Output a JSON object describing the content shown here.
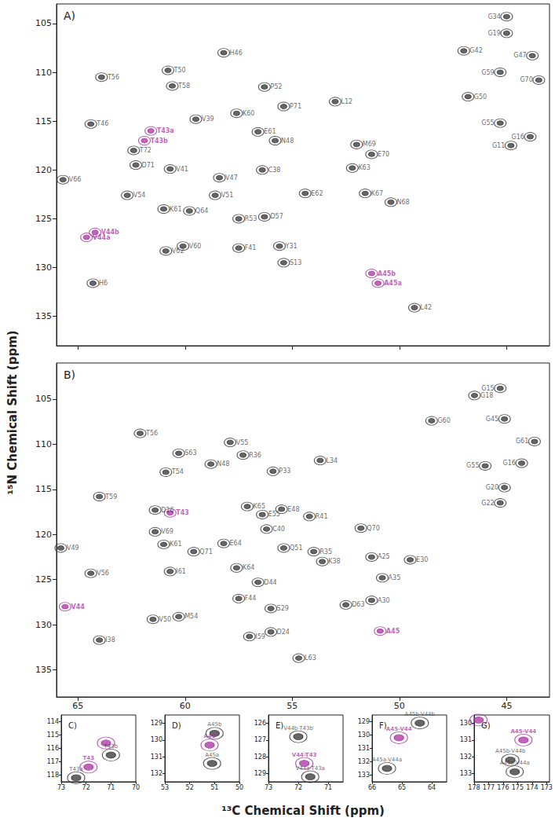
{
  "axis_titles": {
    "x": "¹³C Chemical Shift (ppm)",
    "y": "¹⁵N Chemical Shift (ppm)"
  },
  "chart_data": [
    {
      "type": "scatter",
      "title": "A)",
      "xlim": [
        66,
        43
      ],
      "ylim": [
        138,
        103
      ],
      "xticks": [
        65,
        60,
        55,
        50,
        45
      ],
      "yticks": [
        105,
        110,
        115,
        120,
        125,
        130,
        135
      ],
      "grid": false,
      "tick_labels": "y",
      "marker": "contour",
      "series": [
        {
          "color": "#333333",
          "labels": [
            "T56",
            "T50",
            "T58",
            "V39",
            "H46",
            "P52",
            "P71",
            "L12",
            "K60",
            "E61",
            "N48",
            "T46",
            "T72",
            "D71",
            "V41",
            "V47",
            "C38",
            "M69",
            "E70",
            "K63",
            "V66",
            "V54",
            "K61",
            "Q64",
            "V51",
            "R53",
            "D57",
            "E62",
            "K67",
            "N68",
            "V62",
            "V60",
            "F41",
            "Y31",
            "S13",
            "H6",
            "L42",
            "G34",
            "G19",
            "G42",
            "G47",
            "G59",
            "G70",
            "G50",
            "G55",
            "G11",
            "G16"
          ],
          "x": [
            63.9,
            60.8,
            60.6,
            59.5,
            58.2,
            56.3,
            55.4,
            53.0,
            57.6,
            56.6,
            55.8,
            64.4,
            62.4,
            62.3,
            60.7,
            58.4,
            56.4,
            52.0,
            51.3,
            52.2,
            65.7,
            62.7,
            61.0,
            59.8,
            58.6,
            57.5,
            56.3,
            54.4,
            51.6,
            50.4,
            60.9,
            60.1,
            57.5,
            55.6,
            55.4,
            64.3,
            49.3,
            45.0,
            45.0,
            47.0,
            43.8,
            45.3,
            43.5,
            46.8,
            45.3,
            44.8,
            43.9
          ],
          "y": [
            110.5,
            109.8,
            111.4,
            114.8,
            108.0,
            111.5,
            113.5,
            113.0,
            114.2,
            116.1,
            117.0,
            115.3,
            118.0,
            119.5,
            119.9,
            120.8,
            120.0,
            117.4,
            118.4,
            119.8,
            121.0,
            122.6,
            124.0,
            124.2,
            122.6,
            125.0,
            124.8,
            122.4,
            122.4,
            123.3,
            128.3,
            127.8,
            128.0,
            127.8,
            129.5,
            131.6,
            134.1,
            104.3,
            106.0,
            107.8,
            108.3,
            110.0,
            110.8,
            112.5,
            115.2,
            117.5,
            116.6
          ]
        },
        {
          "color": "#a8329f",
          "labels": [
            "T43a",
            "T43b",
            "V44a",
            "V44b",
            "A45b",
            "A45a"
          ],
          "x": [
            61.6,
            61.9,
            64.6,
            64.2,
            51.3,
            51.0
          ],
          "y": [
            116.0,
            117.0,
            126.9,
            126.4,
            130.6,
            131.6
          ]
        }
      ]
    },
    {
      "type": "scatter",
      "title": "B)",
      "xlim": [
        66,
        43
      ],
      "ylim": [
        138,
        101
      ],
      "xticks": [
        65,
        60,
        55,
        50,
        45
      ],
      "yticks": [
        105,
        110,
        115,
        120,
        125,
        130,
        135
      ],
      "grid": false,
      "marker": "contour",
      "series": [
        {
          "color": "#333333",
          "labels": [
            "T56",
            "S63",
            "N48",
            "V55",
            "R36",
            "P33",
            "L34",
            "T54",
            "T59",
            "D26",
            "K65",
            "E55",
            "E48",
            "R41",
            "Q70",
            "V49",
            "V69",
            "K61",
            "Q71",
            "E64",
            "C40",
            "Q51",
            "R35",
            "A25",
            "E30",
            "V56",
            "I61",
            "K64",
            "D44",
            "K38",
            "A35",
            "V50",
            "M54",
            "F44",
            "S29",
            "D24",
            "D63",
            "A30",
            "I59",
            "I38",
            "L63",
            "G18",
            "G15",
            "G60",
            "G45",
            "G61",
            "G55",
            "G16",
            "G20",
            "G22"
          ],
          "x": [
            62.1,
            60.3,
            58.8,
            57.9,
            57.3,
            55.9,
            53.7,
            60.9,
            64.0,
            61.4,
            57.1,
            56.4,
            55.5,
            54.2,
            51.8,
            65.8,
            61.4,
            61.0,
            59.6,
            58.2,
            56.2,
            55.4,
            54.0,
            51.3,
            49.5,
            64.4,
            60.7,
            57.6,
            56.6,
            53.6,
            50.8,
            61.5,
            60.3,
            57.5,
            56.0,
            56.0,
            52.5,
            51.3,
            57.0,
            64.0,
            54.7,
            46.5,
            45.3,
            48.5,
            45.1,
            43.7,
            46.0,
            44.3,
            45.1,
            45.3
          ],
          "y": [
            108.8,
            111.0,
            112.2,
            109.8,
            111.2,
            113.0,
            111.8,
            113.1,
            115.8,
            117.3,
            116.9,
            117.8,
            117.2,
            118.0,
            119.3,
            121.5,
            119.7,
            121.1,
            121.9,
            121.0,
            119.4,
            121.5,
            121.9,
            122.5,
            122.8,
            124.3,
            124.1,
            123.7,
            125.3,
            123.0,
            124.8,
            129.4,
            129.1,
            127.1,
            128.2,
            130.8,
            127.8,
            127.3,
            131.3,
            131.7,
            133.7,
            104.6,
            103.8,
            107.4,
            107.2,
            109.7,
            112.4,
            112.1,
            114.8,
            116.5
          ]
        },
        {
          "color": "#a8329f",
          "labels": [
            "T43",
            "V44",
            "A45"
          ],
          "x": [
            60.7,
            65.6,
            50.9
          ],
          "y": [
            117.6,
            128.0,
            130.7
          ]
        }
      ]
    },
    {
      "type": "scatter",
      "title": "C)",
      "xlim": [
        73,
        70
      ],
      "ylim": [
        118.5,
        113.5
      ],
      "xticks": [
        73,
        72,
        71,
        70
      ],
      "yticks": [
        114,
        115,
        116,
        117,
        118
      ],
      "grid": false,
      "marker": "contour",
      "series": [
        {
          "color": "#333333",
          "labels": [
            "T43b",
            "T43a"
          ],
          "x": [
            71.0,
            72.4
          ],
          "y": [
            116.5,
            118.2
          ]
        },
        {
          "color": "#a8329f",
          "labels": [
            "T43",
            null
          ],
          "x": [
            71.9,
            71.2
          ],
          "y": [
            117.4,
            115.6
          ]
        }
      ]
    },
    {
      "type": "scatter",
      "title": "D)",
      "xlim": [
        53,
        50
      ],
      "ylim": [
        132.5,
        128.5
      ],
      "xticks": [
        53,
        52,
        51,
        50
      ],
      "yticks": [
        129,
        130,
        131,
        132
      ],
      "grid": false,
      "marker": "contour",
      "series": [
        {
          "color": "#333333",
          "labels": [
            "A45b",
            "A45a"
          ],
          "x": [
            51.0,
            51.1
          ],
          "y": [
            129.6,
            131.4
          ]
        },
        {
          "color": "#a8329f",
          "labels": [
            "A45"
          ],
          "x": [
            51.2
          ],
          "y": [
            130.3
          ]
        }
      ]
    },
    {
      "type": "scatter",
      "title": "E)",
      "xlim": [
        73,
        70.5
      ],
      "ylim": [
        129.5,
        125.5
      ],
      "xticks": [
        73,
        72,
        71
      ],
      "yticks": [
        126,
        127,
        128,
        129
      ],
      "grid": false,
      "marker": "contour",
      "series": [
        {
          "color": "#333333",
          "labels": [
            "V44b-T43b",
            "V44a-T43a"
          ],
          "x": [
            72.0,
            71.6
          ],
          "y": [
            126.8,
            129.2
          ]
        },
        {
          "color": "#a8329f",
          "labels": [
            "V44-T43"
          ],
          "x": [
            71.8
          ],
          "y": [
            128.4
          ]
        }
      ]
    },
    {
      "type": "scatter",
      "title": "F)",
      "xlim": [
        66,
        63.5
      ],
      "ylim": [
        133.5,
        128.5
      ],
      "xticks": [
        66,
        65,
        64
      ],
      "yticks": [
        129,
        130,
        131,
        132,
        133
      ],
      "grid": false,
      "marker": "contour",
      "series": [
        {
          "color": "#333333",
          "labels": [
            "A45b-V44b",
            "A45a-V44a"
          ],
          "x": [
            64.4,
            65.5
          ],
          "y": [
            129.1,
            132.5
          ]
        },
        {
          "color": "#a8329f",
          "labels": [
            "A45-V44"
          ],
          "x": [
            65.1
          ],
          "y": [
            130.2
          ]
        }
      ]
    },
    {
      "type": "scatter",
      "title": "G)",
      "xlim": [
        178,
        172.8
      ],
      "ylim": [
        133.5,
        129.5
      ],
      "xticks": [
        178,
        177,
        176,
        175,
        174,
        173
      ],
      "yticks": [
        130,
        131,
        132,
        133
      ],
      "grid": false,
      "marker": "contour",
      "series": [
        {
          "color": "#333333",
          "labels": [
            "A45b-V44b",
            "A45a-V44a"
          ],
          "x": [
            175.5,
            175.2
          ],
          "y": [
            132.2,
            132.9
          ]
        },
        {
          "color": "#a8329f",
          "labels": [
            "A45-V44",
            null
          ],
          "x": [
            174.6,
            177.7
          ],
          "y": [
            131.0,
            129.8
          ]
        }
      ]
    }
  ]
}
